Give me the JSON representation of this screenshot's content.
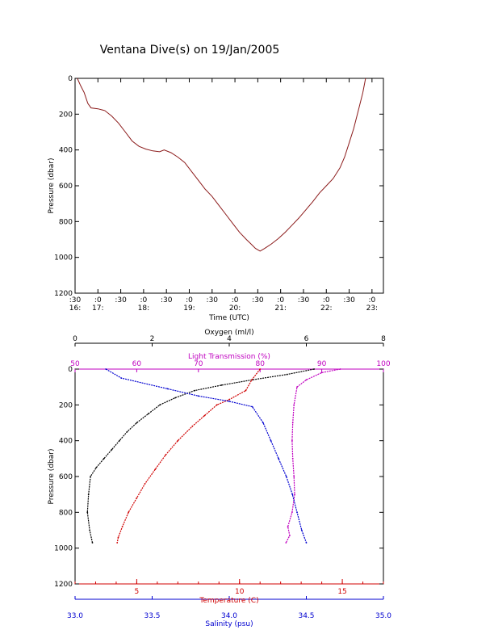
{
  "title": "Ventana Dive(s) on 19/Jan/2005",
  "chart_data": [
    {
      "type": "line",
      "title": "",
      "xlabel": "Time (UTC)",
      "ylabel": "Pressure (dbar)",
      "xlim": [
        16.5,
        23.25
      ],
      "ylim": [
        1200,
        0
      ],
      "y_ticks": [
        0,
        200,
        400,
        600,
        800,
        1000,
        1200
      ],
      "x_ticks": [
        {
          "t": 16.5,
          "top": ":30",
          "bottom": "16:"
        },
        {
          "t": 17.0,
          "top": ":0",
          "bottom": "17:"
        },
        {
          "t": 17.5,
          "top": ":30",
          "bottom": ""
        },
        {
          "t": 18.0,
          "top": ":0",
          "bottom": "18:"
        },
        {
          "t": 18.5,
          "top": ":30",
          "bottom": ""
        },
        {
          "t": 19.0,
          "top": ":0",
          "bottom": "19:"
        },
        {
          "t": 19.5,
          "top": ":30",
          "bottom": ""
        },
        {
          "t": 20.0,
          "top": ":0",
          "bottom": "20:"
        },
        {
          "t": 20.5,
          "top": ":30",
          "bottom": ""
        },
        {
          "t": 21.0,
          "top": ":0",
          "bottom": "21:"
        },
        {
          "t": 21.5,
          "top": ":30",
          "bottom": ""
        },
        {
          "t": 22.0,
          "top": ":0",
          "bottom": "22:"
        },
        {
          "t": 22.5,
          "top": ":30",
          "bottom": ""
        },
        {
          "t": 23.0,
          "top": ":0",
          "bottom": "23:"
        }
      ],
      "series": [
        {
          "color": "#8b1a1a",
          "points": [
            [
              16.55,
              0
            ],
            [
              16.62,
              40
            ],
            [
              16.7,
              80
            ],
            [
              16.78,
              140
            ],
            [
              16.85,
              165
            ],
            [
              17.0,
              170
            ],
            [
              17.15,
              180
            ],
            [
              17.3,
              210
            ],
            [
              17.45,
              250
            ],
            [
              17.6,
              300
            ],
            [
              17.75,
              350
            ],
            [
              17.9,
              380
            ],
            [
              18.05,
              395
            ],
            [
              18.2,
              405
            ],
            [
              18.35,
              410
            ],
            [
              18.45,
              400
            ],
            [
              18.6,
              415
            ],
            [
              18.75,
              440
            ],
            [
              18.9,
              470
            ],
            [
              19.05,
              520
            ],
            [
              19.2,
              570
            ],
            [
              19.35,
              620
            ],
            [
              19.5,
              660
            ],
            [
              19.65,
              710
            ],
            [
              19.8,
              760
            ],
            [
              19.95,
              810
            ],
            [
              20.1,
              860
            ],
            [
              20.25,
              900
            ],
            [
              20.35,
              925
            ],
            [
              20.45,
              950
            ],
            [
              20.55,
              965
            ],
            [
              20.65,
              950
            ],
            [
              20.8,
              925
            ],
            [
              20.95,
              895
            ],
            [
              21.1,
              860
            ],
            [
              21.25,
              820
            ],
            [
              21.4,
              780
            ],
            [
              21.55,
              735
            ],
            [
              21.7,
              690
            ],
            [
              21.85,
              640
            ],
            [
              22.0,
              600
            ],
            [
              22.15,
              560
            ],
            [
              22.3,
              500
            ],
            [
              22.4,
              440
            ],
            [
              22.5,
              360
            ],
            [
              22.6,
              280
            ],
            [
              22.7,
              180
            ],
            [
              22.8,
              80
            ],
            [
              22.86,
              0
            ]
          ]
        }
      ]
    },
    {
      "type": "scatter",
      "title": "",
      "ylabel": "Pressure (dbar)",
      "ylim": [
        1200,
        0
      ],
      "y_ticks": [
        0,
        200,
        400,
        600,
        800,
        1000,
        1200
      ],
      "axes": {
        "oxygen": {
          "label": "Oxygen (ml/l)",
          "range": [
            0,
            8
          ],
          "ticks": [
            0,
            2,
            4,
            6,
            8
          ],
          "color": "#000000"
        },
        "transmission": {
          "label": "Light Transmission (%)",
          "range": [
            50,
            100
          ],
          "ticks": [
            50,
            60,
            70,
            80,
            90,
            100
          ],
          "color": "#c000c0"
        },
        "temperature": {
          "label": "Temperature (C)",
          "range": [
            2,
            17
          ],
          "ticks": [
            5,
            10,
            15
          ],
          "color": "#d00000"
        },
        "salinity": {
          "label": "Salinity (psu)",
          "range": [
            33.0,
            35.0
          ],
          "ticks": [
            33.0,
            33.5,
            34.0,
            34.5,
            35.0
          ],
          "tick_labels": [
            "33.0",
            "33.5",
            "34.0",
            "34.5",
            "35.0"
          ],
          "color": "#0000d0"
        }
      },
      "series": [
        {
          "name": "Oxygen",
          "axis": "oxygen",
          "color": "#000000",
          "points": [
            [
              6.2,
              0
            ],
            [
              5.5,
              30
            ],
            [
              4.6,
              60
            ],
            [
              3.8,
              90
            ],
            [
              3.1,
              120
            ],
            [
              2.6,
              160
            ],
            [
              2.2,
              200
            ],
            [
              1.9,
              250
            ],
            [
              1.6,
              300
            ],
            [
              1.35,
              350
            ],
            [
              1.15,
              400
            ],
            [
              0.95,
              450
            ],
            [
              0.75,
              500
            ],
            [
              0.55,
              550
            ],
            [
              0.4,
              600
            ],
            [
              0.35,
              700
            ],
            [
              0.32,
              800
            ],
            [
              0.38,
              900
            ],
            [
              0.45,
              970
            ]
          ]
        },
        {
          "name": "Light Transmission",
          "axis": "transmission",
          "color": "#c000c0",
          "points": [
            [
              93,
              0
            ],
            [
              90,
              20
            ],
            [
              87.5,
              60
            ],
            [
              86,
              100
            ],
            [
              85.5,
              200
            ],
            [
              85.3,
              300
            ],
            [
              85.2,
              400
            ],
            [
              85.3,
              500
            ],
            [
              85.5,
              600
            ],
            [
              85.6,
              700
            ],
            [
              85.2,
              800
            ],
            [
              84.5,
              880
            ],
            [
              84.8,
              930
            ],
            [
              84.2,
              970
            ]
          ]
        },
        {
          "name": "Temperature",
          "axis": "temperature",
          "color": "#d00000",
          "points": [
            [
              11,
              0
            ],
            [
              10.6,
              60
            ],
            [
              10.3,
              120
            ],
            [
              9.5,
              170
            ],
            [
              8.9,
              200
            ],
            [
              8.3,
              260
            ],
            [
              7.7,
              320
            ],
            [
              7.0,
              400
            ],
            [
              6.4,
              480
            ],
            [
              5.9,
              560
            ],
            [
              5.4,
              640
            ],
            [
              5.0,
              720
            ],
            [
              4.6,
              800
            ],
            [
              4.3,
              880
            ],
            [
              4.1,
              940
            ],
            [
              4.05,
              970
            ]
          ]
        },
        {
          "name": "Salinity",
          "axis": "salinity",
          "color": "#0000d0",
          "points": [
            [
              33.2,
              0
            ],
            [
              33.3,
              50
            ],
            [
              33.6,
              110
            ],
            [
              33.8,
              150
            ],
            [
              34.0,
              180
            ],
            [
              34.15,
              210
            ],
            [
              34.22,
              300
            ],
            [
              34.27,
              400
            ],
            [
              34.32,
              500
            ],
            [
              34.37,
              600
            ],
            [
              34.41,
              700
            ],
            [
              34.44,
              800
            ],
            [
              34.47,
              900
            ],
            [
              34.5,
              970
            ]
          ]
        }
      ]
    }
  ]
}
